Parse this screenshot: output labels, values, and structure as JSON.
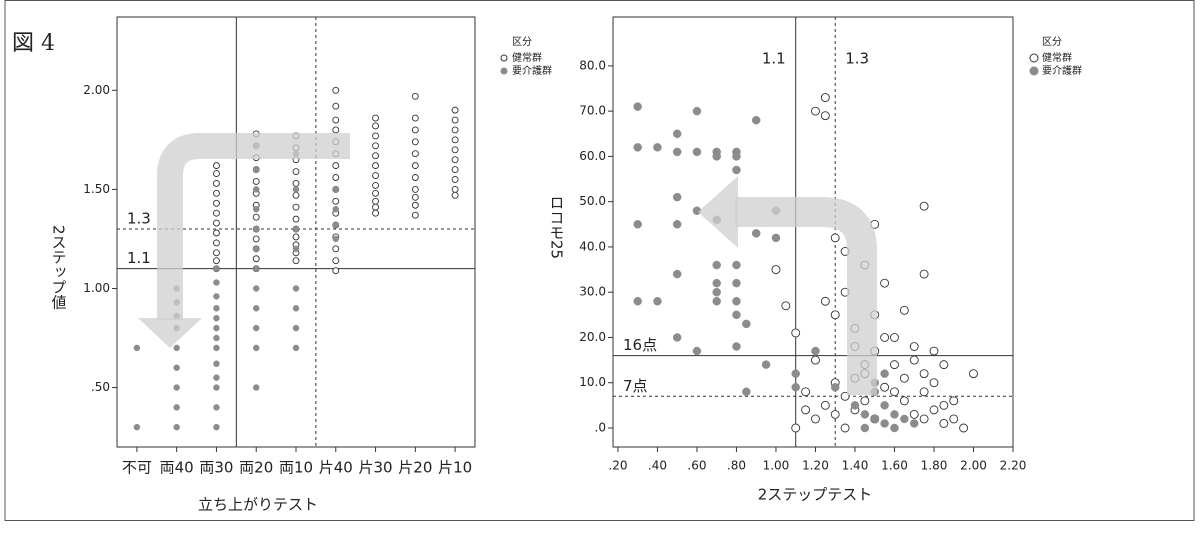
{
  "figure_label": "図 4",
  "chart_data": [
    {
      "type": "scatter",
      "x_label": "立ち上がりテスト",
      "y_label": "2ステップ値",
      "categories": [
        "不可",
        "両40",
        "両30",
        "両20",
        "両10",
        "片40",
        "片30",
        "片20",
        "片10"
      ],
      "ylim": [
        0.2,
        2.37
      ],
      "yticks": [
        {
          "value": 0.5,
          "label": ".50"
        },
        {
          "value": 1.0,
          "label": "1.00"
        },
        {
          "value": 1.5,
          "label": "1.50"
        },
        {
          "value": 2.0,
          "label": "2.00"
        }
      ],
      "legend_title": "区分",
      "legend": "right",
      "reference_lines": [
        {
          "axis": "y",
          "value": 1.3,
          "label": "1.3",
          "dashed": true
        },
        {
          "axis": "y",
          "value": 1.1,
          "label": "1.1",
          "dashed": false
        }
      ],
      "series": [
        {
          "name": "健常群",
          "color": "#333333",
          "hollow": true,
          "x": [
            "両30",
            "両30",
            "両30",
            "両30",
            "両30",
            "両30",
            "両30",
            "両30",
            "両30",
            "両30",
            "両30",
            "両30",
            "両20",
            "両20",
            "両20",
            "両20",
            "両20",
            "両20",
            "両20",
            "両20",
            "両20",
            "両20",
            "両20",
            "両20",
            "両20",
            "両10",
            "両10",
            "両10",
            "両10",
            "両10",
            "両10",
            "両10",
            "両10",
            "両10",
            "両10",
            "両10",
            "両10",
            "両10",
            "片40",
            "片40",
            "片40",
            "片40",
            "片40",
            "片40",
            "片40",
            "片40",
            "片40",
            "片40",
            "片40",
            "片40",
            "片40",
            "片40",
            "片40",
            "片40",
            "片30",
            "片30",
            "片30",
            "片30",
            "片30",
            "片30",
            "片30",
            "片30",
            "片30",
            "片30",
            "片30",
            "片30",
            "片20",
            "片20",
            "片20",
            "片20",
            "片20",
            "片20",
            "片20",
            "片20",
            "片20",
            "片20",
            "片20",
            "片10",
            "片10",
            "片10",
            "片10",
            "片10",
            "片10",
            "片10",
            "片10",
            "片10",
            "片10"
          ],
          "y": [
            1.62,
            1.58,
            1.53,
            1.48,
            1.43,
            1.38,
            1.33,
            1.28,
            1.23,
            1.18,
            1.14,
            1.1,
            1.78,
            1.72,
            1.66,
            1.6,
            1.54,
            1.48,
            1.42,
            1.36,
            1.3,
            1.25,
            1.2,
            1.15,
            1.1,
            1.77,
            1.71,
            1.65,
            1.59,
            1.53,
            1.47,
            1.41,
            1.35,
            1.3,
            1.26,
            1.22,
            1.18,
            1.14,
            2.0,
            1.92,
            1.85,
            1.8,
            1.74,
            1.68,
            1.62,
            1.56,
            1.5,
            1.44,
            1.38,
            1.32,
            1.26,
            1.2,
            1.14,
            1.09,
            1.86,
            1.82,
            1.77,
            1.72,
            1.67,
            1.62,
            1.57,
            1.52,
            1.48,
            1.44,
            1.41,
            1.38,
            1.97,
            1.86,
            1.8,
            1.74,
            1.68,
            1.62,
            1.56,
            1.5,
            1.46,
            1.42,
            1.37,
            1.9,
            1.85,
            1.8,
            1.75,
            1.7,
            1.65,
            1.6,
            1.55,
            1.5,
            1.47
          ]
        },
        {
          "name": "要介護群",
          "color": "#8c8c8c",
          "hollow": false,
          "x": [
            "不可",
            "不可",
            "両40",
            "両40",
            "両40",
            "両40",
            "両40",
            "両40",
            "両40",
            "両40",
            "両40",
            "両30",
            "両30",
            "両30",
            "両30",
            "両30",
            "両30",
            "両30",
            "両30",
            "両30",
            "両30",
            "両30",
            "両30",
            "両30",
            "両20",
            "両20",
            "両20",
            "両20",
            "両20",
            "両20",
            "両20",
            "両20",
            "両20",
            "両20",
            "両20",
            "両20",
            "両10",
            "両10",
            "両10",
            "両10",
            "両10",
            "両10",
            "両10",
            "両10",
            "片40",
            "片40",
            "片40",
            "片40"
          ],
          "y": [
            0.7,
            0.3,
            1.0,
            0.93,
            0.86,
            0.8,
            0.7,
            0.6,
            0.5,
            0.4,
            0.3,
            1.1,
            1.03,
            0.96,
            0.9,
            0.85,
            0.8,
            0.75,
            0.7,
            0.62,
            0.55,
            0.5,
            0.4,
            0.3,
            1.72,
            1.6,
            1.5,
            1.4,
            1.3,
            1.2,
            1.1,
            1.0,
            0.9,
            0.8,
            0.7,
            0.5,
            1.68,
            1.5,
            1.3,
            1.2,
            1.0,
            0.9,
            0.8,
            0.7,
            1.5,
            1.4,
            1.32,
            1.25
          ]
        }
      ]
    },
    {
      "type": "scatter",
      "x_label": "2ステップテスト",
      "y_label": "ロコモ25",
      "xlim": [
        0.175,
        2.2
      ],
      "ylim": [
        -4.2,
        90.8
      ],
      "xticks": [
        {
          "value": 0.2,
          "label": ".20"
        },
        {
          "value": 0.4,
          "label": ".40"
        },
        {
          "value": 0.6,
          "label": ".60"
        },
        {
          "value": 0.8,
          "label": ".80"
        },
        {
          "value": 1.0,
          "label": "1.00"
        },
        {
          "value": 1.2,
          "label": "1.20"
        },
        {
          "value": 1.4,
          "label": "1.40"
        },
        {
          "value": 1.6,
          "label": "1.60"
        },
        {
          "value": 1.8,
          "label": "1.80"
        },
        {
          "value": 2.0,
          "label": "2.00"
        },
        {
          "value": 2.2,
          "label": "2.20"
        }
      ],
      "yticks": [
        {
          "value": 0,
          "label": ".0"
        },
        {
          "value": 10,
          "label": "10.0"
        },
        {
          "value": 20,
          "label": "20.0"
        },
        {
          "value": 30,
          "label": "30.0"
        },
        {
          "value": 40,
          "label": "40.0"
        },
        {
          "value": 50,
          "label": "50.0"
        },
        {
          "value": 60,
          "label": "60.0"
        },
        {
          "value": 70,
          "label": "70.0"
        },
        {
          "value": 80,
          "label": "80.0"
        }
      ],
      "legend_title": "区分",
      "legend": "right",
      "reference_lines": [
        {
          "axis": "x",
          "value": 1.1,
          "label": "1.1",
          "dashed": false
        },
        {
          "axis": "x",
          "value": 1.3,
          "label": "1.3",
          "dashed": true
        },
        {
          "axis": "y",
          "value": 16,
          "label": "16点",
          "dashed": false
        },
        {
          "axis": "y",
          "value": 7,
          "label": "7点",
          "dashed": true
        }
      ],
      "series": [
        {
          "name": "健常群",
          "color": "#333333",
          "hollow": true,
          "x": [
            1.2,
            1.25,
            1.25,
            1.3,
            1.35,
            1.75,
            1.75,
            1.5,
            1.45,
            1.0,
            1.05,
            1.1,
            1.1,
            1.15,
            1.2,
            1.25,
            1.3,
            1.35,
            1.4,
            1.4,
            1.45,
            1.5,
            1.55,
            1.6,
            1.65,
            1.7,
            1.75,
            1.8,
            1.85,
            1.9,
            1.95,
            2.0,
            1.3,
            1.35,
            1.4,
            1.45,
            1.5,
            1.55,
            1.6,
            1.65,
            1.7,
            1.75,
            1.8,
            1.85,
            1.3,
            1.35,
            1.4,
            1.45,
            1.5,
            1.55,
            1.6,
            1.65,
            1.7,
            1.75,
            1.8,
            1.25,
            1.2,
            1.15,
            1.85,
            1.9
          ],
          "y": [
            70,
            73,
            69,
            42,
            39,
            49,
            34,
            45,
            36,
            35,
            27,
            21,
            0,
            4,
            15,
            28,
            25,
            30,
            22,
            18,
            14,
            25,
            32,
            20,
            26,
            15,
            12,
            10,
            5,
            2,
            0,
            12,
            10,
            7,
            4,
            12,
            17,
            9,
            14,
            6,
            3,
            8,
            4,
            1,
            3,
            0,
            11,
            6,
            2,
            20,
            8,
            11,
            18,
            2,
            17,
            5,
            2,
            8,
            14,
            6
          ]
        },
        {
          "name": "要介護群",
          "color": "#8c8c8c",
          "hollow": false,
          "x": [
            0.3,
            0.3,
            0.3,
            0.3,
            0.4,
            0.4,
            0.5,
            0.5,
            0.5,
            0.5,
            0.5,
            0.5,
            0.6,
            0.6,
            0.6,
            0.6,
            0.7,
            0.7,
            0.7,
            0.7,
            0.7,
            0.7,
            0.7,
            0.8,
            0.8,
            0.8,
            0.8,
            0.8,
            0.8,
            0.8,
            0.8,
            0.85,
            0.9,
            0.9,
            0.95,
            0.85,
            1.0,
            1.0,
            1.1,
            1.1,
            1.2,
            1.3,
            1.4,
            1.45,
            1.5,
            1.55,
            1.6,
            1.5,
            1.55,
            1.6,
            1.65,
            1.7,
            1.45,
            1.5,
            1.55
          ],
          "y": [
            71,
            62,
            45,
            28,
            62,
            28,
            65,
            61,
            51,
            45,
            34,
            20,
            70,
            61,
            48,
            17,
            61,
            60,
            46,
            36,
            32,
            30,
            28,
            61,
            60,
            57,
            36,
            32,
            28,
            25,
            18,
            23,
            68,
            43,
            14,
            8,
            48,
            42,
            12,
            9,
            17,
            9,
            5,
            3,
            2,
            1,
            0,
            8,
            5,
            3,
            2,
            1,
            0,
            10,
            12
          ]
        }
      ]
    }
  ]
}
